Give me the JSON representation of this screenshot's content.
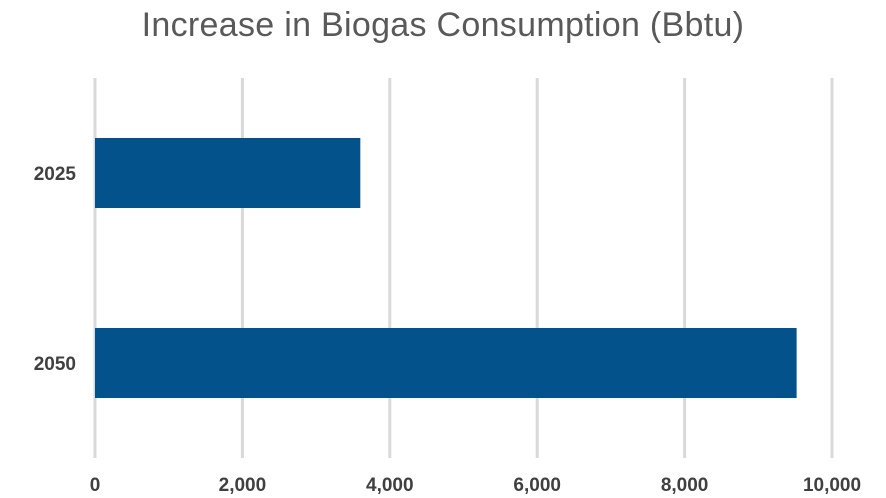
{
  "chart_data": {
    "type": "bar",
    "orientation": "horizontal",
    "title": "Increase in Biogas Consumption (Bbtu)",
    "categories": [
      "2025",
      "2050"
    ],
    "values": [
      3600,
      9520
    ],
    "xlim": [
      0,
      10000
    ],
    "xticks": [
      0,
      2000,
      4000,
      6000,
      8000,
      10000
    ],
    "xtick_labels": [
      "0",
      "2,000",
      "4,000",
      "6,000",
      "8,000",
      "10,000"
    ],
    "grid": "vertical",
    "legend": "none",
    "bar_color": "#03528B",
    "grid_color": "#D9D9D9"
  }
}
